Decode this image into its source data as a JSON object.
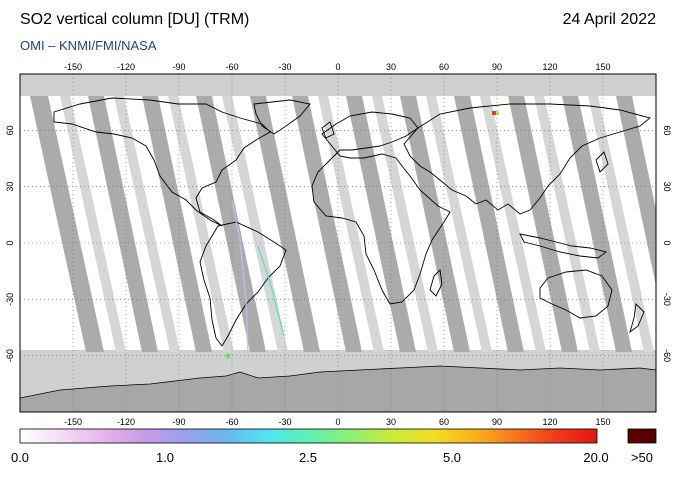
{
  "title": "SO2 vertical column [DU] (TRM)",
  "date": "24 April 2022",
  "credit": "OMI  –  KNMI/FMI/NASA",
  "map": {
    "lon_ticks": [
      "-150",
      "-120",
      "-90",
      "-60",
      "-30",
      "0",
      "30",
      "60",
      "90",
      "120",
      "150"
    ],
    "lat_ticks": [
      "60",
      "30",
      "0",
      "-30",
      "-60"
    ]
  },
  "legend": {
    "labels": [
      "0.0",
      "1.0",
      "2.5",
      "5.0",
      "20.0"
    ],
    "overflow_label": ">50",
    "colors": [
      "#ffffff",
      "#f4ddf4",
      "#e7b4ec",
      "#c99be6",
      "#9aa0ec",
      "#6ab6f0",
      "#4fe6f0",
      "#5ef0b4",
      "#8bf078",
      "#c6ec3c",
      "#f2de20",
      "#f8b41c",
      "#f6781c",
      "#f03c1c",
      "#e61414"
    ],
    "overflow_color": "#5a0000"
  },
  "colors": {
    "land_shade": "#bdbdbd",
    "swath_dark": "#a9a9a9",
    "swath_light": "#d3d3d3",
    "coast": "#000000"
  }
}
